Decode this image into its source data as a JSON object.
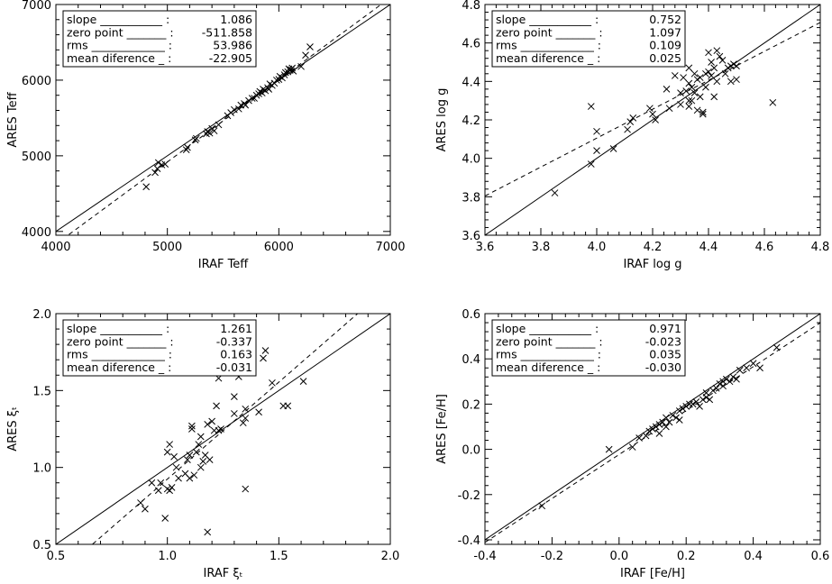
{
  "chart_data": [
    {
      "type": "scatter",
      "xlabel": "IRAF Teff",
      "ylabel": "ARES Teff",
      "xlim": [
        4000,
        7000
      ],
      "ylim": [
        3950,
        7000
      ],
      "xticks": [
        "4000",
        "5000",
        "6000",
        "7000"
      ],
      "yticks": [
        "4000",
        "5000",
        "6000",
        "7000"
      ],
      "xtick_values": [
        4000,
        5000,
        6000,
        7000
      ],
      "ytick_values": [
        4000,
        5000,
        6000,
        7000
      ],
      "stats": [
        {
          "label": "slope ___________ :",
          "value": "1.086"
        },
        {
          "label": "zero point _______ :",
          "value": "-511.858"
        },
        {
          "label": "rms _____________ :",
          "value": "53.986"
        },
        {
          "label": "mean diference _ :",
          "value": "-22.905"
        }
      ],
      "fit": {
        "slope": 1.086,
        "intercept": -511.858
      },
      "points": [
        [
          4810,
          4590
        ],
        [
          4890,
          4780
        ],
        [
          4910,
          4830
        ],
        [
          4920,
          4910
        ],
        [
          4950,
          4880
        ],
        [
          4980,
          4890
        ],
        [
          5170,
          5080
        ],
        [
          5180,
          5110
        ],
        [
          5250,
          5210
        ],
        [
          5260,
          5230
        ],
        [
          5350,
          5290
        ],
        [
          5360,
          5320
        ],
        [
          5380,
          5300
        ],
        [
          5400,
          5360
        ],
        [
          5420,
          5330
        ],
        [
          5460,
          5410
        ],
        [
          5540,
          5530
        ],
        [
          5570,
          5570
        ],
        [
          5600,
          5610
        ],
        [
          5640,
          5620
        ],
        [
          5660,
          5670
        ],
        [
          5690,
          5690
        ],
        [
          5700,
          5670
        ],
        [
          5730,
          5730
        ],
        [
          5760,
          5760
        ],
        [
          5780,
          5760
        ],
        [
          5800,
          5800
        ],
        [
          5820,
          5820
        ],
        [
          5830,
          5850
        ],
        [
          5850,
          5830
        ],
        [
          5860,
          5880
        ],
        [
          5880,
          5860
        ],
        [
          5900,
          5900
        ],
        [
          5910,
          5880
        ],
        [
          5920,
          5950
        ],
        [
          5940,
          5930
        ],
        [
          5960,
          5960
        ],
        [
          5980,
          6000
        ],
        [
          6000,
          6010
        ],
        [
          6010,
          6050
        ],
        [
          6030,
          6030
        ],
        [
          6050,
          6070
        ],
        [
          6060,
          6100
        ],
        [
          6080,
          6110
        ],
        [
          6090,
          6150
        ],
        [
          6100,
          6130
        ],
        [
          6110,
          6140
        ],
        [
          6120,
          6160
        ],
        [
          6130,
          6120
        ],
        [
          6200,
          6180
        ],
        [
          6240,
          6330
        ],
        [
          6280,
          6440
        ]
      ]
    },
    {
      "type": "scatter",
      "xlabel": "IRAF log g",
      "ylabel": "ARES log g",
      "xlim": [
        3.6,
        4.8
      ],
      "ylim": [
        3.6,
        4.8
      ],
      "xticks": [
        "3.6",
        "3.8",
        "4.0",
        "4.2",
        "4.4",
        "4.6",
        "4.8"
      ],
      "yticks": [
        "3.6",
        "3.8",
        "4.0",
        "4.2",
        "4.4",
        "4.6",
        "4.8"
      ],
      "xtick_values": [
        3.6,
        3.8,
        4.0,
        4.2,
        4.4,
        4.6,
        4.8
      ],
      "ytick_values": [
        3.6,
        3.8,
        4.0,
        4.2,
        4.4,
        4.6,
        4.8
      ],
      "stats": [
        {
          "label": "slope ___________ :",
          "value": "0.752"
        },
        {
          "label": "zero point _______ :",
          "value": "1.097"
        },
        {
          "label": "rms _____________ :",
          "value": "0.109"
        },
        {
          "label": "mean diference _ :",
          "value": "0.025"
        }
      ],
      "fit": {
        "slope": 0.752,
        "intercept": 1.097
      },
      "points": [
        [
          3.85,
          3.82
        ],
        [
          3.98,
          4.27
        ],
        [
          3.98,
          3.97
        ],
        [
          4.0,
          4.04
        ],
        [
          4.0,
          4.14
        ],
        [
          4.06,
          4.05
        ],
        [
          4.11,
          4.15
        ],
        [
          4.12,
          4.19
        ],
        [
          4.13,
          4.21
        ],
        [
          4.19,
          4.26
        ],
        [
          4.2,
          4.23
        ],
        [
          4.21,
          4.2
        ],
        [
          4.25,
          4.36
        ],
        [
          4.26,
          4.26
        ],
        [
          4.27,
          4.58
        ],
        [
          4.28,
          4.43
        ],
        [
          4.3,
          4.28
        ],
        [
          4.3,
          4.34
        ],
        [
          4.31,
          4.42
        ],
        [
          4.32,
          4.35
        ],
        [
          4.33,
          4.27
        ],
        [
          4.33,
          4.3
        ],
        [
          4.33,
          4.39
        ],
        [
          4.33,
          4.47
        ],
        [
          4.34,
          4.3
        ],
        [
          4.34,
          4.37
        ],
        [
          4.35,
          4.44
        ],
        [
          4.35,
          4.34
        ],
        [
          4.36,
          4.41
        ],
        [
          4.36,
          4.25
        ],
        [
          4.37,
          4.42
        ],
        [
          4.37,
          4.32
        ],
        [
          4.38,
          4.23
        ],
        [
          4.38,
          4.24
        ],
        [
          4.39,
          4.37
        ],
        [
          4.39,
          4.44
        ],
        [
          4.4,
          4.55
        ],
        [
          4.4,
          4.45
        ],
        [
          4.41,
          4.43
        ],
        [
          4.41,
          4.5
        ],
        [
          4.42,
          4.32
        ],
        [
          4.42,
          4.47
        ],
        [
          4.43,
          4.56
        ],
        [
          4.43,
          4.4
        ],
        [
          4.44,
          4.53
        ],
        [
          4.45,
          4.51
        ],
        [
          4.46,
          4.44
        ],
        [
          4.47,
          4.47
        ],
        [
          4.48,
          4.48
        ],
        [
          4.48,
          4.4
        ],
        [
          4.49,
          4.49
        ],
        [
          4.5,
          4.41
        ],
        [
          4.5,
          4.48
        ],
        [
          4.63,
          4.29
        ]
      ]
    },
    {
      "type": "scatter",
      "xlabel": "IRAF ξₜ",
      "ylabel": "ARES ξₜ",
      "xlim": [
        0.5,
        2.0
      ],
      "ylim": [
        0.5,
        2.0
      ],
      "xticks": [
        "0.5",
        "1.0",
        "1.5",
        "2.0"
      ],
      "yticks": [
        "0.5",
        "1.0",
        "1.5",
        "2.0"
      ],
      "xtick_values": [
        0.5,
        1.0,
        1.5,
        2.0
      ],
      "ytick_values": [
        0.5,
        1.0,
        1.5,
        2.0
      ],
      "stats": [
        {
          "label": "slope ___________ :",
          "value": "1.261"
        },
        {
          "label": "zero point _______ :",
          "value": "-0.337"
        },
        {
          "label": "rms _____________ :",
          "value": "0.163"
        },
        {
          "label": "mean diference _ :",
          "value": "-0.031"
        }
      ],
      "fit": {
        "slope": 1.261,
        "intercept": -0.337
      },
      "points": [
        [
          0.88,
          0.77
        ],
        [
          0.9,
          0.73
        ],
        [
          0.93,
          0.9
        ],
        [
          0.96,
          0.85
        ],
        [
          0.97,
          0.9
        ],
        [
          0.99,
          0.67
        ],
        [
          1.0,
          0.86
        ],
        [
          1.0,
          1.1
        ],
        [
          1.01,
          0.85
        ],
        [
          1.01,
          1.15
        ],
        [
          1.02,
          0.87
        ],
        [
          1.03,
          1.07
        ],
        [
          1.04,
          1.0
        ],
        [
          1.05,
          0.93
        ],
        [
          1.08,
          0.96
        ],
        [
          1.09,
          1.05
        ],
        [
          1.1,
          1.08
        ],
        [
          1.1,
          0.93
        ],
        [
          1.11,
          1.25
        ],
        [
          1.11,
          1.27
        ],
        [
          1.12,
          0.95
        ],
        [
          1.13,
          1.1
        ],
        [
          1.14,
          1.15
        ],
        [
          1.15,
          1.2
        ],
        [
          1.15,
          1.0
        ],
        [
          1.16,
          1.04
        ],
        [
          1.17,
          1.08
        ],
        [
          1.18,
          1.28
        ],
        [
          1.18,
          0.58
        ],
        [
          1.19,
          1.05
        ],
        [
          1.2,
          1.3
        ],
        [
          1.21,
          1.24
        ],
        [
          1.22,
          1.4
        ],
        [
          1.23,
          1.24
        ],
        [
          1.23,
          1.58
        ],
        [
          1.24,
          1.25
        ],
        [
          1.3,
          1.35
        ],
        [
          1.3,
          1.46
        ],
        [
          1.32,
          1.59
        ],
        [
          1.34,
          1.29
        ],
        [
          1.35,
          1.32
        ],
        [
          1.35,
          1.38
        ],
        [
          1.35,
          0.86
        ],
        [
          1.41,
          1.36
        ],
        [
          1.43,
          1.71
        ],
        [
          1.44,
          1.76
        ],
        [
          1.47,
          1.55
        ],
        [
          1.52,
          1.4
        ],
        [
          1.54,
          1.4
        ],
        [
          1.61,
          1.56
        ]
      ]
    },
    {
      "type": "scatter",
      "xlabel": "IRAF [Fe/H]",
      "ylabel": "ARES [Fe/H]",
      "xlim": [
        -0.4,
        0.6
      ],
      "ylim": [
        -0.42,
        0.6
      ],
      "xticks": [
        "-0.4",
        "-0.2",
        "0.0",
        "0.2",
        "0.4",
        "0.6"
      ],
      "yticks": [
        "-0.4",
        "-0.2",
        "0.0",
        "0.2",
        "0.4",
        "0.6"
      ],
      "xtick_values": [
        -0.4,
        -0.2,
        0.0,
        0.2,
        0.4,
        0.6
      ],
      "ytick_values": [
        -0.4,
        -0.2,
        0.0,
        0.2,
        0.4,
        0.6
      ],
      "stats": [
        {
          "label": "slope ___________ :",
          "value": "0.971"
        },
        {
          "label": "zero point _______ :",
          "value": "-0.023"
        },
        {
          "label": "rms _____________ :",
          "value": "0.035"
        },
        {
          "label": "mean diference _ :",
          "value": "-0.030"
        }
      ],
      "fit": {
        "slope": 0.971,
        "intercept": -0.023
      },
      "points": [
        [
          -0.23,
          -0.25
        ],
        [
          -0.03,
          0.0
        ],
        [
          0.04,
          0.01
        ],
        [
          0.06,
          0.05
        ],
        [
          0.08,
          0.06
        ],
        [
          0.09,
          0.08
        ],
        [
          0.1,
          0.09
        ],
        [
          0.11,
          0.1
        ],
        [
          0.12,
          0.11
        ],
        [
          0.12,
          0.07
        ],
        [
          0.13,
          0.12
        ],
        [
          0.14,
          0.1
        ],
        [
          0.14,
          0.14
        ],
        [
          0.15,
          0.12
        ],
        [
          0.16,
          0.15
        ],
        [
          0.17,
          0.14
        ],
        [
          0.18,
          0.13
        ],
        [
          0.18,
          0.17
        ],
        [
          0.19,
          0.18
        ],
        [
          0.2,
          0.19
        ],
        [
          0.21,
          0.2
        ],
        [
          0.22,
          0.2
        ],
        [
          0.23,
          0.21
        ],
        [
          0.24,
          0.19
        ],
        [
          0.25,
          0.22
        ],
        [
          0.26,
          0.23
        ],
        [
          0.26,
          0.25
        ],
        [
          0.27,
          0.22
        ],
        [
          0.28,
          0.26
        ],
        [
          0.29,
          0.27
        ],
        [
          0.3,
          0.29
        ],
        [
          0.31,
          0.28
        ],
        [
          0.31,
          0.3
        ],
        [
          0.32,
          0.31
        ],
        [
          0.33,
          0.3
        ],
        [
          0.34,
          0.32
        ],
        [
          0.35,
          0.31
        ],
        [
          0.36,
          0.35
        ],
        [
          0.38,
          0.36
        ],
        [
          0.4,
          0.38
        ],
        [
          0.42,
          0.36
        ],
        [
          0.47,
          0.45
        ]
      ]
    }
  ]
}
